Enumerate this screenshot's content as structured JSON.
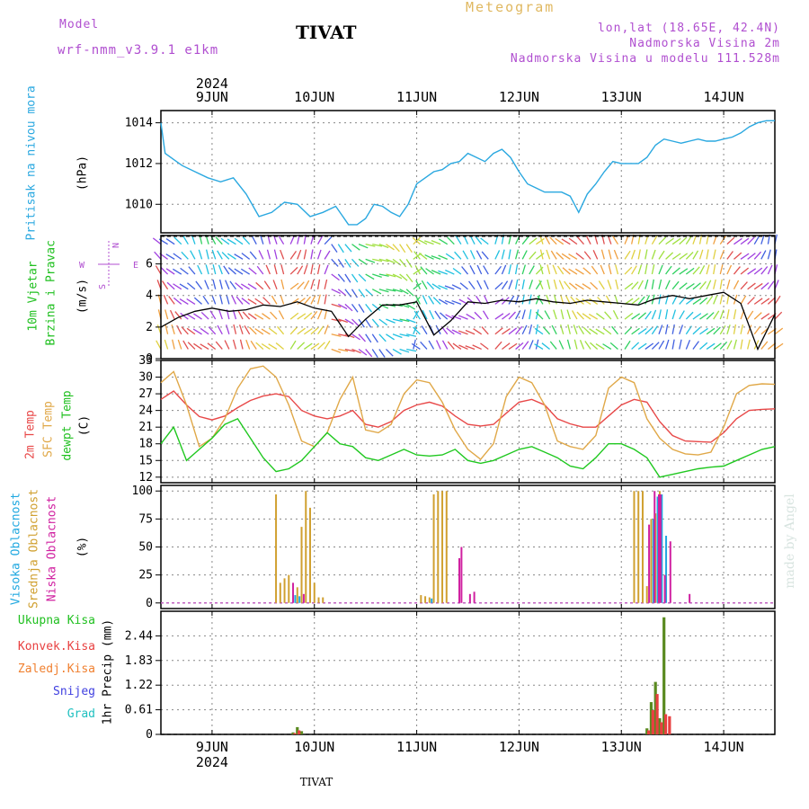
{
  "header": {
    "model_label": "Model",
    "model_name": "wrf-nmm_v3.9.1 e1km",
    "title": "TIVAT",
    "meteogram": "Meteogram",
    "lonlat": "lon,lat (18.65E, 42.4N)",
    "altitude": "Nadmorska Visina 2m",
    "model_altitude": "Nadmorska Visina u modelu 111.528m"
  },
  "footer": {
    "station": "TIVAT",
    "credit": "made by Angel"
  },
  "colors": {
    "pressure": "#2aa8e0",
    "t2m": "#e84848",
    "sfc": "#e0a848",
    "dew": "#20c820",
    "high_cloud": "#20a8e0",
    "mid_cloud": "#d0a030",
    "low_cloud": "#d020a0",
    "total_precip": "#20c020",
    "conv_precip": "#e84040",
    "frozen": "#f08030",
    "snow": "#4040e0",
    "hail": "#20c0c0",
    "wind_line": "#000000",
    "gust": "#e84040",
    "purple": "#b04fd0",
    "gold": "#e0b860"
  },
  "chart_data": [
    {
      "type": "line",
      "panel": "pressure",
      "ylabel": "Pritisak na nivou mora",
      "unit": "(hPa)",
      "ylim": [
        1008.6,
        1014.6
      ],
      "yticks": [
        1010,
        1012,
        1014
      ],
      "top_year": "2024",
      "top_dates": [
        "9JUN",
        "10JUN",
        "11JUN",
        "12JUN",
        "13JUN",
        "14JUN"
      ],
      "x_start": "2024-06-08T12:00",
      "x_end": "2024-06-14T12:00",
      "grid": true,
      "series": [
        {
          "name": "Pritisak na nivou mora",
          "x_hours": [
            0,
            1,
            3,
            5,
            8,
            11,
            14,
            17,
            20,
            23,
            26,
            29,
            32,
            35,
            38,
            41,
            44,
            46,
            48,
            50,
            52,
            54,
            56,
            58,
            60,
            62,
            64,
            66,
            68,
            70,
            72,
            74,
            76,
            78,
            80,
            82,
            84,
            86,
            88,
            90,
            92,
            94,
            96,
            98,
            100,
            102,
            104,
            106,
            108,
            110,
            112,
            114,
            116,
            118,
            120,
            122,
            124,
            126,
            128,
            130,
            132,
            134,
            136,
            138,
            140,
            142,
            144
          ],
          "values": [
            1014.0,
            1012.5,
            1012.2,
            1011.9,
            1011.6,
            1011.3,
            1011.1,
            1011.3,
            1010.5,
            1009.4,
            1009.6,
            1010.1,
            1010.0,
            1009.4,
            1009.6,
            1009.9,
            1009.0,
            1009.0,
            1009.3,
            1010.0,
            1009.9,
            1009.6,
            1009.4,
            1010.0,
            1011.0,
            1011.3,
            1011.6,
            1011.7,
            1012.0,
            1012.1,
            1012.5,
            1012.3,
            1012.1,
            1012.5,
            1012.7,
            1012.3,
            1011.6,
            1011.0,
            1010.8,
            1010.6,
            1010.6,
            1010.6,
            1010.4,
            1009.6,
            1010.5,
            1011.0,
            1011.6,
            1012.1,
            1012.0,
            1012.0,
            1012.0,
            1012.3,
            1012.9,
            1013.2,
            1013.1,
            1013.0,
            1013.1,
            1013.2,
            1013.1,
            1013.1,
            1013.2,
            1013.3,
            1013.5,
            1013.8,
            1014.0,
            1014.1,
            1014.1
          ]
        }
      ]
    },
    {
      "type": "line",
      "panel": "wind",
      "ylabel1": "10m Vjetar",
      "ylabel2": "Brzina i Pravac",
      "unit": "(m/s)",
      "ylim": [
        0,
        7.8
      ],
      "yticks": [
        0,
        2,
        4,
        6
      ],
      "compass": {
        "n": "N",
        "s": "S",
        "w": "W",
        "e": "E"
      },
      "grid": true,
      "series": [
        {
          "name": "10m Vjetar",
          "x_hours": [
            0,
            4,
            8,
            12,
            16,
            20,
            24,
            28,
            32,
            36,
            40,
            44,
            48,
            52,
            56,
            60,
            64,
            68,
            72,
            76,
            80,
            84,
            88,
            92,
            96,
            100,
            104,
            108,
            112,
            116,
            120,
            124,
            128,
            132,
            136,
            140,
            144
          ],
          "values": [
            2.0,
            2.6,
            3.0,
            3.2,
            3.0,
            3.1,
            3.4,
            3.3,
            3.6,
            3.2,
            3.0,
            1.4,
            2.5,
            3.4,
            3.4,
            3.6,
            1.5,
            2.4,
            3.6,
            3.5,
            3.7,
            3.6,
            3.8,
            3.6,
            3.5,
            3.7,
            3.6,
            3.5,
            3.4,
            3.8,
            4.0,
            3.8,
            4.0,
            4.2,
            3.5,
            0.6,
            2.8
          ]
        }
      ]
    },
    {
      "type": "line",
      "panel": "temperature",
      "ylabel_t2m": "2m Temp",
      "ylabel_sfc": "SFC Temp",
      "ylabel_dew": "dewpt Temp",
      "unit": "(C)",
      "ylim": [
        11,
        33
      ],
      "yticks": [
        12,
        15,
        18,
        21,
        24,
        27,
        30,
        33
      ],
      "grid": true,
      "series": [
        {
          "name": "2m Temp",
          "x_hours": [
            0,
            3,
            6,
            9,
            12,
            15,
            18,
            21,
            24,
            27,
            30,
            33,
            36,
            39,
            42,
            45,
            48,
            51,
            54,
            57,
            60,
            63,
            66,
            69,
            72,
            75,
            78,
            81,
            84,
            87,
            90,
            93,
            96,
            99,
            102,
            105,
            108,
            111,
            114,
            117,
            120,
            123,
            126,
            129,
            132,
            135,
            138,
            141,
            144
          ],
          "values": [
            26.0,
            27.5,
            25.0,
            22.9,
            22.3,
            23.0,
            24.5,
            25.8,
            26.6,
            27.0,
            26.5,
            24.0,
            23.0,
            22.5,
            23.0,
            24.0,
            21.5,
            21.0,
            22.0,
            24.0,
            25.0,
            25.5,
            24.8,
            23.0,
            21.5,
            21.2,
            21.5,
            23.5,
            25.5,
            26.0,
            25.0,
            22.5,
            21.6,
            21.0,
            21.0,
            23.0,
            25.0,
            26.0,
            25.5,
            22.0,
            19.5,
            18.5,
            18.4,
            18.3,
            20.0,
            22.5,
            24.0,
            24.2,
            24.3
          ]
        },
        {
          "name": "SFC Temp",
          "x_hours": [
            0,
            3,
            6,
            9,
            12,
            15,
            18,
            21,
            24,
            27,
            30,
            33,
            36,
            39,
            42,
            45,
            48,
            51,
            54,
            57,
            60,
            63,
            66,
            69,
            72,
            75,
            78,
            81,
            84,
            87,
            90,
            93,
            96,
            99,
            102,
            105,
            108,
            111,
            114,
            117,
            120,
            123,
            126,
            129,
            132,
            135,
            138,
            141,
            144
          ],
          "values": [
            29.0,
            31.0,
            25.0,
            17.5,
            19.0,
            22.5,
            28.0,
            31.5,
            32.0,
            30.0,
            25.0,
            18.5,
            17.5,
            20.0,
            26.0,
            30.0,
            20.5,
            20.0,
            21.5,
            27.0,
            29.5,
            29.0,
            25.5,
            20.5,
            17.0,
            15.2,
            18.0,
            26.5,
            30.0,
            29.0,
            25.0,
            18.5,
            17.5,
            17.0,
            19.5,
            28.0,
            30.0,
            29.0,
            22.5,
            19.0,
            17.0,
            16.2,
            16.0,
            16.5,
            21.0,
            27.0,
            28.5,
            28.8,
            28.7
          ]
        },
        {
          "name": "dewpt Temp",
          "x_hours": [
            0,
            3,
            6,
            9,
            12,
            15,
            18,
            21,
            24,
            27,
            30,
            33,
            36,
            39,
            42,
            45,
            48,
            51,
            54,
            57,
            60,
            63,
            66,
            69,
            72,
            75,
            78,
            81,
            84,
            87,
            90,
            93,
            96,
            99,
            102,
            105,
            108,
            111,
            114,
            117,
            120,
            123,
            126,
            129,
            132,
            135,
            138,
            141,
            144
          ],
          "values": [
            18.0,
            21.0,
            15.0,
            17.0,
            19.0,
            21.5,
            22.5,
            19.0,
            15.5,
            13.0,
            13.5,
            15.0,
            17.5,
            20.0,
            18.0,
            17.5,
            15.5,
            15.0,
            16.0,
            17.0,
            16.0,
            15.8,
            16.0,
            17.0,
            15.0,
            14.5,
            15.0,
            16.0,
            17.0,
            17.5,
            16.5,
            15.5,
            14.0,
            13.5,
            15.5,
            18.0,
            18.0,
            17.0,
            15.5,
            12.0,
            12.5,
            13.0,
            13.5,
            13.8,
            14.0,
            15.0,
            16.0,
            17.0,
            17.5
          ]
        }
      ]
    },
    {
      "type": "bar",
      "panel": "cloud",
      "ylabel_high": "Visoka Oblacnost",
      "ylabel_mid": "Srednja Oblacnost",
      "ylabel_low": "Niska Oblacnost",
      "unit": "(%)",
      "ylim": [
        -5,
        105
      ],
      "yticks": [
        0,
        25,
        50,
        75,
        100
      ],
      "grid": true,
      "series": [
        {
          "name": "Srednja Oblacnost",
          "x_hours": [
            27,
            28,
            29,
            30,
            32,
            33,
            34,
            35,
            36,
            37,
            38,
            61,
            62,
            63,
            64,
            65,
            66,
            67,
            111,
            112,
            113,
            114,
            115,
            116,
            117
          ],
          "values": [
            97,
            18,
            22,
            25,
            14,
            68,
            100,
            85,
            18,
            5,
            5,
            7,
            6,
            5,
            97,
            100,
            100,
            100,
            100,
            100,
            100,
            15,
            75,
            80,
            100
          ]
        },
        {
          "name": "Visoka Oblacnost",
          "x_hours": [
            31.5,
            32.5,
            63.5,
            115.5,
            116.5,
            117.5,
            118.5
          ],
          "values": [
            7,
            6,
            4,
            75,
            95,
            97,
            60
          ]
        },
        {
          "name": "Niska Oblacnost",
          "x_hours": [
            31,
            33.5,
            70,
            70.5,
            72.5,
            73.5,
            114.5,
            115.8,
            116.8,
            117.2,
            118.2,
            119.5,
            124
          ],
          "values": [
            18,
            8,
            40,
            50,
            8,
            10,
            70,
            100,
            97,
            97,
            25,
            55,
            8
          ]
        }
      ]
    },
    {
      "type": "bar",
      "panel": "precip",
      "legend": [
        "Ukupna Kisa",
        "Konvek.Kisa",
        "Zaledj.Kisa",
        "Snijeg",
        "Grad"
      ],
      "ylabel": "1hr Precip (mm)",
      "ylim": [
        0,
        3.05
      ],
      "yticks": [
        0,
        0.61,
        1.22,
        1.83,
        2.44
      ],
      "bottom_dates": [
        "9JUN",
        "10JUN",
        "11JUN",
        "12JUN",
        "13JUN",
        "14JUN"
      ],
      "bottom_year": "2024",
      "grid": true,
      "series": [
        {
          "name": "Ukupna Kisa",
          "x_hours": [
            31,
            32,
            33,
            114,
            115,
            116,
            117,
            118
          ],
          "values": [
            0.05,
            0.18,
            0.08,
            0.15,
            0.8,
            1.3,
            0.4,
            2.9
          ]
        },
        {
          "name": "Konvek.Kisa",
          "x_hours": [
            31.4,
            32.4,
            114.4,
            115.4,
            116.4,
            117.4,
            118.4,
            119.3
          ],
          "values": [
            0.03,
            0.1,
            0.1,
            0.6,
            1.0,
            0.3,
            0.5,
            0.45
          ]
        }
      ]
    }
  ]
}
